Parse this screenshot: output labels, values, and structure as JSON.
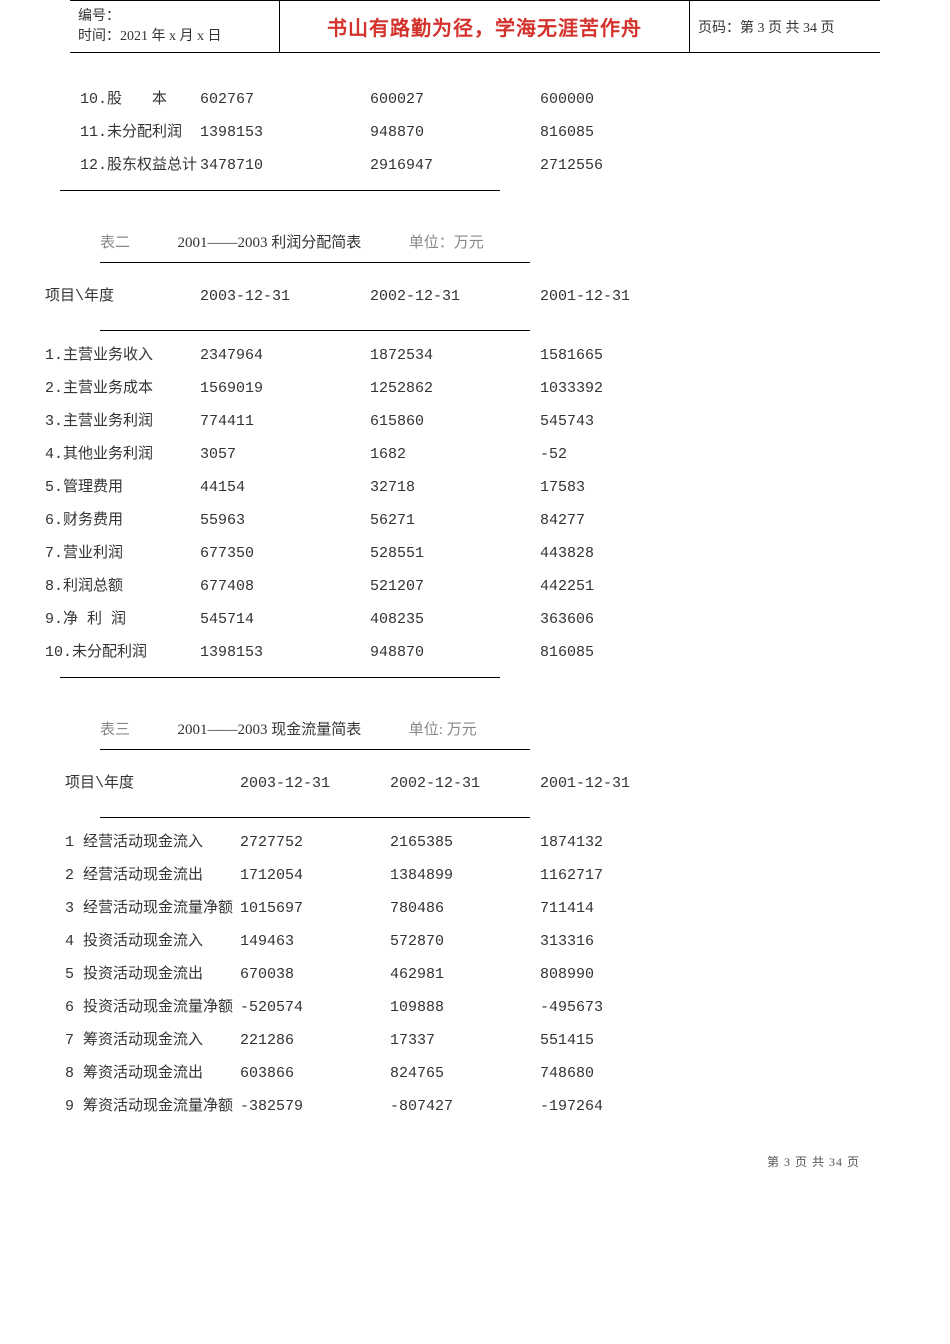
{
  "header": {
    "serial_label": "编号：",
    "date_line": "时间：2021 年 x 月 x 日",
    "motto": "书山有路勤为径，学海无涯苦作舟",
    "page_code": "页码：第 3 页  共 34 页"
  },
  "table1": {
    "rows": [
      {
        "label": "10.股　　本",
        "v2003": "602767",
        "v2002": "600027",
        "v2001": "600000"
      },
      {
        "label": "11.未分配利润",
        "v2003": "1398153",
        "v2002": "948870",
        "v2001": "816085"
      },
      {
        "label": "12.股东权益总计",
        "v2003": "3478710",
        "v2002": "2916947",
        "v2001": "2712556"
      }
    ]
  },
  "table2": {
    "caption_name": "表二",
    "caption_title": "2001——2003 利润分配简表",
    "caption_unit": "单位：万元",
    "header": {
      "label": "项目\\年度",
      "c1": "2003-12-31",
      "c2": "2002-12-31",
      "c3": "2001-12-31"
    },
    "rows": [
      {
        "label": "1.主营业务收入",
        "v2003": "2347964",
        "v2002": "1872534",
        "v2001": "1581665"
      },
      {
        "label": "2.主营业务成本",
        "v2003": "1569019",
        "v2002": "1252862",
        "v2001": "1033392"
      },
      {
        "label": "3.主营业务利润",
        "v2003": "774411",
        "v2002": "615860",
        "v2001": "545743"
      },
      {
        "label": "4.其他业务利润",
        "v2003": "3057",
        "v2002": "1682",
        "v2001": "-52"
      },
      {
        "label": "5.管理费用",
        "v2003": "44154",
        "v2002": "32718",
        "v2001": "17583"
      },
      {
        "label": "6.财务费用",
        "v2003": " 55963",
        "v2002": " 56271",
        "v2001": " 84277"
      },
      {
        "label": "7.营业利润",
        "v2003": " 677350",
        "v2002": " 528551",
        "v2001": " 443828"
      },
      {
        "label": "8.利润总额",
        "v2003": " 677408",
        "v2002": " 521207",
        "v2001": " 442251"
      },
      {
        "label": "9.净 利 润",
        "v2003": " 545714",
        "v2002": " 408235",
        "v2001": " 363606"
      },
      {
        "label": "10.未分配利润",
        "v2003": " 1398153",
        "v2002": " 948870",
        "v2001": " 816085"
      }
    ]
  },
  "table3": {
    "caption_name": "表三",
    "caption_title": "2001——2003 现金流量简表",
    "caption_unit": "单位: 万元",
    "header": {
      "label": "项目\\年度",
      "c1": "2003-12-31",
      "c2": "2002-12-31",
      "c3": "2001-12-31"
    },
    "rows": [
      {
        "label": "1 经营活动现金流入",
        "v2003": "2727752",
        "v2002": "2165385",
        "v2001": "1874132"
      },
      {
        "label": "  2 经营活动现金流出",
        "v2003": " 1712054",
        "v2002": " 1384899",
        "v2001": " 1162717"
      },
      {
        "label": "  3 经营活动现金流量净额",
        "v2003": " 1015697",
        "v2002": " 780486",
        "v2001": " 711414"
      },
      {
        "label": "  4 投资活动现金流入",
        "v2003": " 149463",
        "v2002": " 572870",
        "v2001": " 313316"
      },
      {
        "label": "  5 投资活动现金流出",
        "v2003": " 670038",
        "v2002": " 462981",
        "v2001": " 808990"
      },
      {
        "label": "  6 投资活动现金流量净额",
        "v2003": " -520574",
        "v2002": "  109888",
        "v2001": " -495673"
      },
      {
        "label": "  7 筹资活动现金流入",
        "v2003": " 221286",
        "v2002": " 17337",
        "v2001": " 551415"
      },
      {
        "label": "  8 筹资活动现金流出",
        "v2003": " 603866",
        "v2002": " 824765",
        "v2001": " 748680"
      },
      {
        "label": "  9 筹资活动现金流量净额",
        "v2003": " -382579",
        "v2002": "  -807427",
        "v2001": "  -197264"
      }
    ]
  },
  "footer": "第  3  页  共  34  页"
}
